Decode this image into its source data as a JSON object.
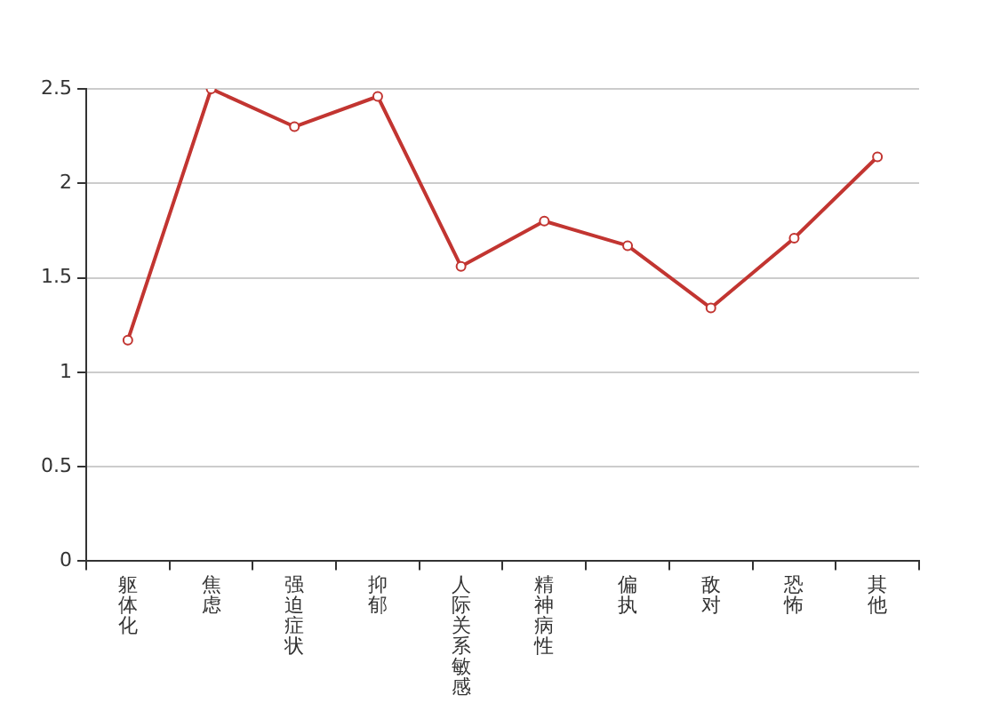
{
  "chart_data": {
    "type": "line",
    "categories": [
      "躯体化",
      "焦虑",
      "强迫症状",
      "抑郁",
      "人际关系敏感",
      "精神病性",
      "偏执",
      "敌对",
      "恐怖",
      "其他"
    ],
    "series": [
      {
        "color": "#c23531",
        "values": [
          1.17,
          2.5,
          2.3,
          2.46,
          1.56,
          1.8,
          1.67,
          1.34,
          1.71,
          2.14
        ]
      }
    ],
    "ylim": [
      0,
      2.5
    ],
    "yticks": [
      0,
      0.5,
      1,
      1.5,
      2,
      2.5
    ],
    "grid": "y",
    "marker": "circle",
    "legend": false
  }
}
